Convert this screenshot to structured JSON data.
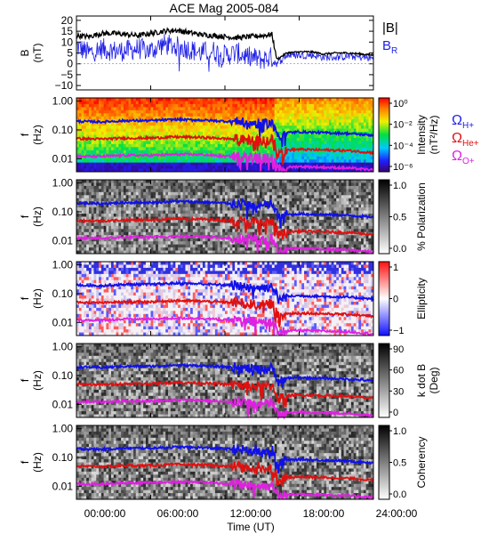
{
  "chart_data": [
    {
      "type": "line",
      "title": "ACE Mag 2005-084",
      "ylabel": "B",
      "yunit": "(nT)",
      "ylim": [
        -12,
        22
      ],
      "yticks": [
        -10,
        -5,
        0,
        5,
        10,
        15,
        20
      ],
      "ytick_labels": [
        "−10",
        "−5",
        "0",
        "5",
        "10",
        "15",
        "20"
      ],
      "xlim_hours": [
        0,
        24
      ],
      "legend": [
        "|B|",
        "B",
        "R"
      ],
      "series": [
        {
          "name": "|B|",
          "color": "#000000",
          "x": [
            0,
            1,
            2,
            3,
            4,
            5,
            6,
            7,
            8,
            9,
            10,
            11,
            12,
            13,
            14,
            15,
            15.8,
            16.2,
            17,
            18,
            19,
            20,
            21,
            22,
            23,
            24
          ],
          "values": [
            13,
            12.5,
            14,
            14,
            13.5,
            13,
            14,
            15,
            15.5,
            14.5,
            13.5,
            13,
            12.5,
            12,
            12.5,
            13,
            13.5,
            2,
            5,
            5.5,
            5.5,
            4.5,
            5,
            5,
            4.5,
            4
          ]
        },
        {
          "name": "BR",
          "color": "#1f1fe6",
          "x": [
            0,
            1,
            2,
            3,
            4,
            5,
            6,
            7,
            8,
            9,
            10,
            11,
            12,
            13,
            14,
            15,
            15.8,
            16.2,
            17,
            18,
            19,
            20,
            21,
            22,
            23,
            24
          ],
          "values": [
            8,
            5,
            7,
            6,
            6,
            7,
            6,
            9,
            8,
            7,
            5,
            6,
            4,
            5,
            3,
            2,
            3,
            0,
            4,
            4,
            4,
            3,
            3,
            3.5,
            3,
            2.5
          ]
        }
      ]
    },
    {
      "type": "heatmap",
      "ylabel": "f",
      "yunit": "(Hz)",
      "yticks": [
        1.0,
        0.1,
        0.01
      ],
      "ytick_labels": [
        "1.00",
        "0.10",
        "0.01"
      ],
      "colorbar": {
        "label": "Intensity",
        "unit": "(nT²/Hz)",
        "scale": "log",
        "ticks": [
          "10⁰",
          "10⁻²",
          "10⁻⁴",
          "10⁻⁶"
        ],
        "colors": "rainbow"
      },
      "gyro_legend": [
        {
          "symbol": "Ω",
          "sub": "H+",
          "color": "#1f1fe6"
        },
        {
          "symbol": "Ω",
          "sub": "He+",
          "color": "#e01010"
        },
        {
          "symbol": "Ω",
          "sub": "O+",
          "color": "#e020e0"
        }
      ]
    },
    {
      "type": "heatmap",
      "ylabel": "f",
      "yunit": "(Hz)",
      "yticks": [
        1.0,
        0.1,
        0.01
      ],
      "ytick_labels": [
        "1.00",
        "0.10",
        "0.01"
      ],
      "colorbar": {
        "label": "% Polarization",
        "ticks": [
          "1.0",
          "0.5",
          "0.0"
        ],
        "colors": "gray"
      }
    },
    {
      "type": "heatmap",
      "ylabel": "f",
      "yunit": "(Hz)",
      "yticks": [
        1.0,
        0.1,
        0.01
      ],
      "ytick_labels": [
        "1.00",
        "0.10",
        "0.01"
      ],
      "colorbar": {
        "label": "Ellipticity",
        "ticks": [
          "1",
          "0",
          "−1"
        ],
        "colors": "bluewhitered"
      }
    },
    {
      "type": "heatmap",
      "ylabel": "f",
      "yunit": "(Hz)",
      "yticks": [
        1.0,
        0.1,
        0.01
      ],
      "ytick_labels": [
        "1.00",
        "0.10",
        "0.01"
      ],
      "colorbar": {
        "label": "k dot B",
        "unit": "(Deg)",
        "ticks": [
          "90",
          "60",
          "30",
          "0"
        ],
        "colors": "gray"
      }
    },
    {
      "type": "heatmap",
      "ylabel": "f",
      "yunit": "(Hz)",
      "yticks": [
        1.0,
        0.1,
        0.01
      ],
      "ytick_labels": [
        "1.00",
        "0.10",
        "0.01"
      ],
      "colorbar": {
        "label": "Coherency",
        "ticks": [
          "1.0",
          "0.5",
          "0.0"
        ],
        "colors": "gray"
      }
    }
  ],
  "gyrofrequencies_hz": {
    "x": [
      0,
      2,
      4,
      6,
      8,
      10,
      12,
      13,
      14,
      15,
      15.8,
      16.3,
      17,
      18,
      20,
      22,
      24
    ],
    "H+": [
      0.2,
      0.19,
      0.21,
      0.21,
      0.23,
      0.22,
      0.2,
      0.19,
      0.17,
      0.16,
      0.18,
      0.06,
      0.08,
      0.085,
      0.08,
      0.075,
      0.065
    ],
    "He+": [
      0.05,
      0.048,
      0.052,
      0.052,
      0.057,
      0.055,
      0.05,
      0.048,
      0.043,
      0.04,
      0.045,
      0.015,
      0.02,
      0.021,
      0.02,
      0.019,
      0.016
    ],
    "O+": [
      0.012,
      0.012,
      0.013,
      0.013,
      0.014,
      0.014,
      0.012,
      0.012,
      0.011,
      0.01,
      0.011,
      0.0038,
      0.005,
      0.0053,
      0.005,
      0.0047,
      0.004
    ]
  },
  "xaxis": {
    "ticks_hours": [
      0,
      6,
      12,
      18,
      24
    ],
    "tick_labels": [
      "00:00:00",
      "06:00:00",
      "12:00:00",
      "18:00:00",
      "24:00:00"
    ],
    "label": "Time (UT)"
  }
}
